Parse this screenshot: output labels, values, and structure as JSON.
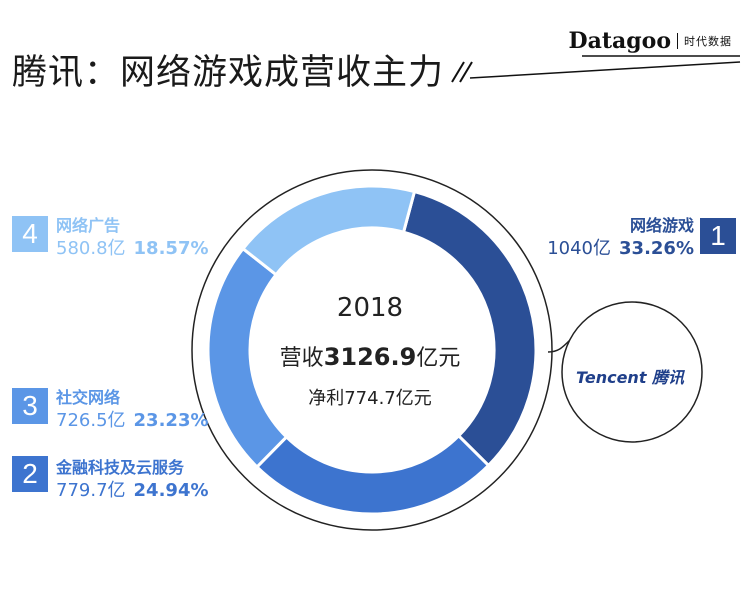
{
  "header": {
    "title": "腾讯：网络游戏成营收主力",
    "brand_name": "Datagoo",
    "brand_sub": "时代数据"
  },
  "center": {
    "year": "2018",
    "revenue_prefix": "营收",
    "revenue_value": "3126.9",
    "revenue_unit": "亿元",
    "net_profit": "净利774.7亿元"
  },
  "logo": {
    "text": "Tencent 腾讯"
  },
  "colors": {
    "games": "#2b4f96",
    "fintech": "#3d74cf",
    "social": "#5b96e6",
    "ads": "#8fc3f5"
  },
  "chart_data": {
    "type": "pie",
    "variant": "donut",
    "unit": "亿",
    "series": [
      {
        "rank": "1",
        "name": "网络游戏",
        "amount": "1040亿",
        "percent": "33.26%",
        "value": 33.26
      },
      {
        "rank": "2",
        "name": "金融科技及云服务",
        "amount": "779.7亿",
        "percent": "24.94%",
        "value": 24.94
      },
      {
        "rank": "3",
        "name": "社交网络",
        "amount": "726.5亿",
        "percent": "23.23%",
        "value": 23.23
      },
      {
        "rank": "4",
        "name": "网络广告",
        "amount": "580.8亿",
        "percent": "18.57%",
        "value": 18.57
      }
    ]
  }
}
